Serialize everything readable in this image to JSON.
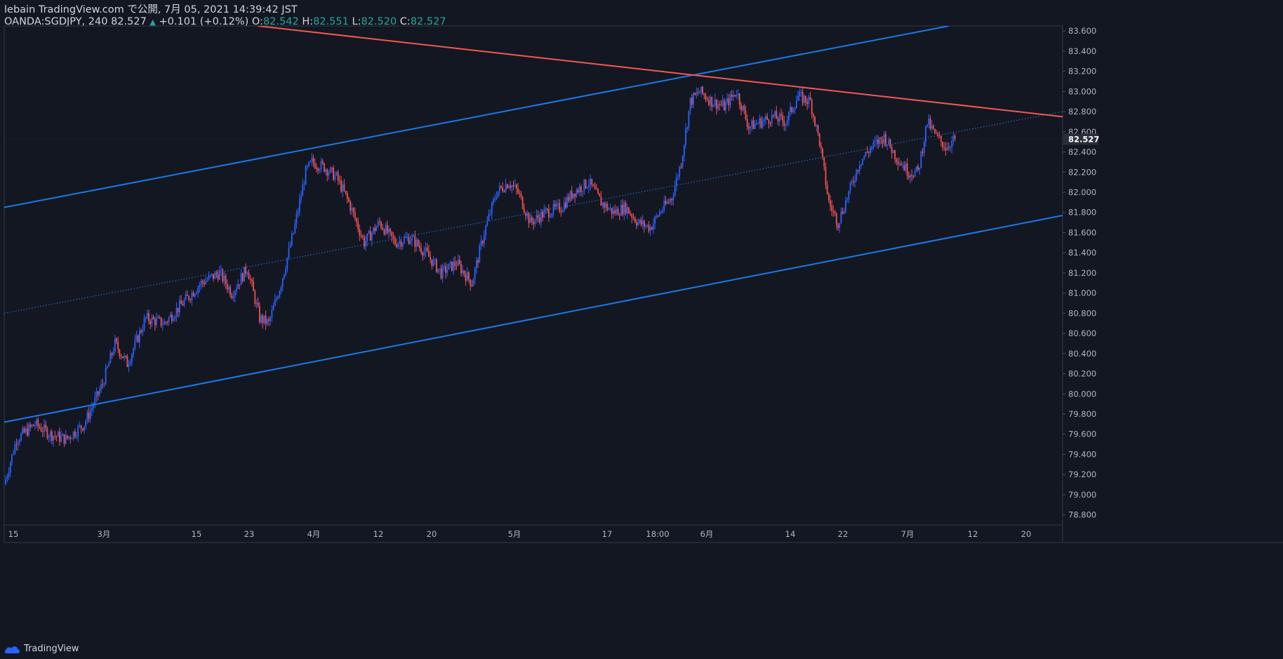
{
  "header": {
    "publish_line": "lebain TradingView.com で公開, 7月 05, 2021 14:39:42 JST",
    "symbol_interval": "OANDA:SGDJPY, 240",
    "last_price": "82.527",
    "change_arrow": "▲",
    "change": "+0.101 (+0.12%)",
    "open_label": "O:",
    "open": "82.542",
    "high_label": "H:",
    "high": "82.551",
    "low_label": "L:",
    "low": "82.520",
    "close_label": "C:",
    "close": "82.527"
  },
  "footer": {
    "brand": "TradingView"
  },
  "colors": {
    "background": "#131722",
    "up": "#2962ff",
    "down": "#ef5350",
    "channel": "#1e78e6",
    "resistance": "#f05a50",
    "axis_text": "#b2b5be",
    "price_label_bg": "#2a2e39"
  },
  "chart_data": {
    "type": "candlestick",
    "title": "OANDA:SGDJPY, 240",
    "ylim": [
      78.7,
      83.65
    ],
    "y_ticks": [
      "83.600",
      "83.400",
      "83.200",
      "83.000",
      "82.800",
      "82.600",
      "82.400",
      "82.200",
      "82.000",
      "81.800",
      "81.600",
      "81.400",
      "81.200",
      "81.000",
      "80.800",
      "80.600",
      "80.400",
      "80.200",
      "80.000",
      "79.800",
      "79.600",
      "79.400",
      "79.200",
      "79.000",
      "78.800"
    ],
    "x_ticks": [
      "15",
      "3月",
      "15",
      "23",
      "4月",
      "12",
      "20",
      "5月",
      "17",
      "18:00",
      "6月",
      "14",
      "22",
      "7月",
      "12",
      "20"
    ],
    "current_price_label": "82.527",
    "price_path": [
      [
        0,
        79.1
      ],
      [
        8,
        79.55
      ],
      [
        20,
        79.7
      ],
      [
        30,
        79.6
      ],
      [
        40,
        79.55
      ],
      [
        52,
        79.7
      ],
      [
        64,
        80.1
      ],
      [
        72,
        80.5
      ],
      [
        80,
        80.3
      ],
      [
        92,
        80.75
      ],
      [
        104,
        80.7
      ],
      [
        116,
        80.9
      ],
      [
        128,
        81.1
      ],
      [
        140,
        81.2
      ],
      [
        148,
        81.0
      ],
      [
        158,
        81.25
      ],
      [
        166,
        80.75
      ],
      [
        172,
        80.7
      ],
      [
        180,
        81.1
      ],
      [
        188,
        81.6
      ],
      [
        196,
        82.2
      ],
      [
        200,
        82.3
      ],
      [
        208,
        82.25
      ],
      [
        216,
        82.15
      ],
      [
        224,
        81.9
      ],
      [
        234,
        81.5
      ],
      [
        244,
        81.7
      ],
      [
        254,
        81.5
      ],
      [
        264,
        81.55
      ],
      [
        274,
        81.4
      ],
      [
        284,
        81.2
      ],
      [
        294,
        81.3
      ],
      [
        304,
        81.1
      ],
      [
        312,
        81.6
      ],
      [
        320,
        82.0
      ],
      [
        328,
        82.1
      ],
      [
        334,
        82.0
      ],
      [
        342,
        81.7
      ],
      [
        352,
        81.8
      ],
      [
        362,
        81.85
      ],
      [
        370,
        82.0
      ],
      [
        380,
        82.1
      ],
      [
        388,
        81.9
      ],
      [
        396,
        81.8
      ],
      [
        404,
        81.85
      ],
      [
        412,
        81.7
      ],
      [
        420,
        81.65
      ],
      [
        426,
        81.8
      ],
      [
        434,
        81.95
      ],
      [
        440,
        82.3
      ],
      [
        446,
        82.9
      ],
      [
        452,
        83.0
      ],
      [
        460,
        82.9
      ],
      [
        468,
        82.85
      ],
      [
        476,
        83.0
      ],
      [
        484,
        82.65
      ],
      [
        492,
        82.7
      ],
      [
        500,
        82.75
      ],
      [
        508,
        82.7
      ],
      [
        516,
        82.95
      ],
      [
        524,
        82.9
      ],
      [
        530,
        82.5
      ],
      [
        536,
        81.9
      ],
      [
        542,
        81.7
      ],
      [
        548,
        81.95
      ],
      [
        556,
        82.3
      ],
      [
        564,
        82.45
      ],
      [
        572,
        82.55
      ],
      [
        580,
        82.35
      ],
      [
        588,
        82.2
      ],
      [
        594,
        82.2
      ],
      [
        600,
        82.7
      ],
      [
        606,
        82.55
      ],
      [
        612,
        82.45
      ],
      [
        618,
        82.53
      ]
    ],
    "lines": [
      {
        "name": "channel-upper",
        "from": [
          0,
          81.85
        ],
        "to": [
          614,
          83.65
        ]
      },
      {
        "name": "channel-lower",
        "from": [
          0,
          79.72
        ],
        "to": [
          688,
          81.77
        ]
      },
      {
        "name": "channel-mid",
        "from": [
          0,
          80.8
        ],
        "to": [
          688,
          82.8
        ]
      },
      {
        "name": "resistance",
        "from": [
          165,
          83.65
        ],
        "to": [
          688,
          82.75
        ]
      }
    ]
  }
}
